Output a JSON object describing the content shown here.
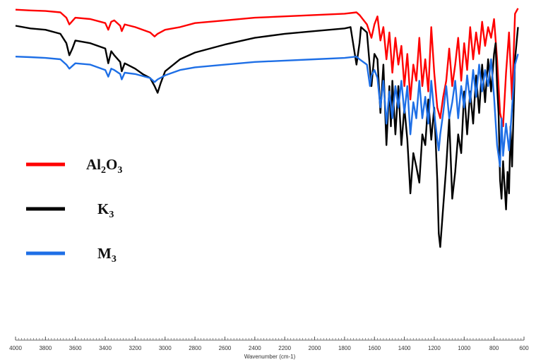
{
  "chart_data": {
    "type": "line",
    "title": "",
    "xlabel": "Wavenumber (cm-1)",
    "ylabel": "",
    "xlim": [
      4000,
      600
    ],
    "ylim": [
      0,
      100
    ],
    "x_reversed": true,
    "grid": false,
    "legend_position": "left",
    "x_ticks": [
      4000,
      3800,
      3600,
      3400,
      3200,
      3000,
      2800,
      2600,
      2400,
      2200,
      2000,
      1800,
      1600,
      1400,
      1200,
      1000,
      800,
      600
    ],
    "x_tick_labels": [
      "4000",
      "3800",
      "3600",
      "3400",
      "3200",
      "3000",
      "2800",
      "2600",
      "2400",
      "2200",
      "2000",
      "1800",
      "1600",
      "1400",
      "1200",
      "1000",
      "800",
      "600"
    ],
    "series": [
      {
        "name": "Al2O3",
        "legend_parts": [
          {
            "t": "Al",
            "sub": false
          },
          {
            "t": "2",
            "sub": true
          },
          {
            "t": "O",
            "sub": false
          },
          {
            "t": "3",
            "sub": true
          }
        ],
        "color": "#ff0000",
        "x": [
          4000,
          3900,
          3800,
          3700,
          3660,
          3640,
          3600,
          3500,
          3400,
          3380,
          3360,
          3340,
          3300,
          3290,
          3270,
          3200,
          3100,
          3070,
          3050,
          3000,
          2900,
          2800,
          2600,
          2400,
          2200,
          2000,
          1800,
          1720,
          1700,
          1650,
          1620,
          1600,
          1580,
          1560,
          1540,
          1520,
          1500,
          1480,
          1460,
          1440,
          1420,
          1400,
          1380,
          1360,
          1340,
          1320,
          1300,
          1280,
          1260,
          1240,
          1220,
          1200,
          1180,
          1160,
          1140,
          1120,
          1100,
          1080,
          1060,
          1040,
          1020,
          1000,
          980,
          960,
          940,
          920,
          900,
          880,
          860,
          840,
          820,
          800,
          780,
          760,
          740,
          720,
          700,
          680,
          660,
          640
        ],
        "y": [
          98.5,
          98.2,
          98.0,
          97.5,
          95.5,
          93.0,
          95.5,
          95.0,
          93.5,
          91.0,
          94.0,
          94.5,
          92.5,
          90.5,
          93.0,
          92.0,
          90.0,
          88.5,
          89.5,
          91.0,
          92.0,
          93.5,
          94.5,
          95.5,
          96.0,
          96.5,
          97.0,
          97.5,
          96.5,
          93.0,
          88.0,
          93.0,
          96.0,
          87.0,
          92.0,
          80.0,
          90.0,
          75.0,
          88.0,
          78.0,
          85.0,
          70.0,
          82.0,
          65.0,
          78.0,
          72.0,
          88.0,
          70.0,
          80.0,
          68.0,
          92.0,
          75.0,
          62.0,
          58.0,
          66.0,
          72.0,
          84.0,
          70.0,
          78.0,
          88.0,
          72.0,
          86.0,
          76.0,
          92.0,
          80.0,
          90.0,
          82.0,
          94.0,
          85.0,
          92.0,
          88.0,
          95.0,
          80.0,
          60.0,
          55.0,
          75.0,
          90.0,
          65.0,
          97.0,
          99.0
        ]
      },
      {
        "name": "K3",
        "legend_parts": [
          {
            "t": "K",
            "sub": false
          },
          {
            "t": "3",
            "sub": true
          }
        ],
        "color": "#000000",
        "x": [
          4000,
          3900,
          3800,
          3700,
          3660,
          3640,
          3620,
          3600,
          3500,
          3400,
          3380,
          3360,
          3340,
          3300,
          3290,
          3270,
          3200,
          3150,
          3100,
          3070,
          3050,
          3030,
          3000,
          2900,
          2800,
          2600,
          2400,
          2200,
          2000,
          1800,
          1760,
          1740,
          1720,
          1700,
          1690,
          1650,
          1620,
          1600,
          1580,
          1560,
          1540,
          1520,
          1500,
          1490,
          1480,
          1460,
          1440,
          1420,
          1400,
          1380,
          1360,
          1340,
          1320,
          1300,
          1280,
          1260,
          1240,
          1220,
          1200,
          1180,
          1170,
          1160,
          1140,
          1120,
          1100,
          1080,
          1060,
          1040,
          1020,
          1000,
          980,
          960,
          940,
          920,
          900,
          880,
          860,
          840,
          820,
          800,
          790,
          780,
          770,
          760,
          750,
          740,
          720,
          710,
          700,
          690,
          680,
          660,
          640
        ],
        "y": [
          92.5,
          91.5,
          91.0,
          89.5,
          86.0,
          81.5,
          84.0,
          87.0,
          86.0,
          84.0,
          78.5,
          83.0,
          81.5,
          79.0,
          75.5,
          78.5,
          76.5,
          74.5,
          73.0,
          70.0,
          67.5,
          71.0,
          75.5,
          80.0,
          82.5,
          85.5,
          88.0,
          89.5,
          90.5,
          91.5,
          92.0,
          85.0,
          78.0,
          86.0,
          92.0,
          90.0,
          70.0,
          82.0,
          80.0,
          60.0,
          78.0,
          48.0,
          70.0,
          55.0,
          72.0,
          52.0,
          70.0,
          48.0,
          62.0,
          50.0,
          30.0,
          45.0,
          40.0,
          34.0,
          52.0,
          48.0,
          65.0,
          50.0,
          62.0,
          35.0,
          15.0,
          10.0,
          25.0,
          40.0,
          58.0,
          28.0,
          38.0,
          52.0,
          45.0,
          68.0,
          52.0,
          68.0,
          56.0,
          74.0,
          60.0,
          78.0,
          64.0,
          80.0,
          68.0,
          82.0,
          86.0,
          70.0,
          60.0,
          35.0,
          28.0,
          42.0,
          24.0,
          38.0,
          30.0,
          55.0,
          40.0,
          80.0,
          92.0
        ]
      },
      {
        "name": "M3",
        "legend_parts": [
          {
            "t": "M",
            "sub": false
          },
          {
            "t": "3",
            "sub": true
          }
        ],
        "color": "#1e6fe6",
        "x": [
          4000,
          3900,
          3800,
          3700,
          3660,
          3640,
          3600,
          3500,
          3400,
          3380,
          3360,
          3340,
          3300,
          3290,
          3270,
          3200,
          3100,
          3070,
          3050,
          3000,
          2900,
          2800,
          2600,
          2400,
          2200,
          2000,
          1800,
          1720,
          1700,
          1650,
          1630,
          1620,
          1600,
          1580,
          1560,
          1540,
          1520,
          1500,
          1480,
          1460,
          1440,
          1420,
          1400,
          1380,
          1360,
          1340,
          1320,
          1300,
          1280,
          1260,
          1240,
          1220,
          1200,
          1180,
          1170,
          1160,
          1140,
          1120,
          1100,
          1080,
          1060,
          1040,
          1020,
          1000,
          980,
          960,
          940,
          920,
          900,
          880,
          860,
          840,
          820,
          800,
          780,
          760,
          750,
          740,
          720,
          700,
          680,
          660,
          640
        ],
        "y": [
          81.0,
          80.8,
          80.5,
          80.0,
          78.0,
          76.5,
          78.5,
          78.0,
          76.0,
          73.5,
          76.5,
          76.0,
          74.5,
          72.5,
          75.0,
          74.5,
          73.0,
          71.5,
          72.5,
          74.0,
          76.0,
          77.0,
          78.0,
          79.0,
          79.5,
          80.0,
          80.5,
          81.0,
          80.0,
          78.0,
          70.0,
          74.0,
          76.0,
          73.0,
          62.0,
          72.0,
          56.0,
          68.0,
          58.0,
          70.0,
          62.0,
          72.0,
          60.0,
          70.0,
          52.0,
          64.0,
          58.0,
          72.0,
          58.0,
          66.0,
          56.0,
          72.0,
          60.0,
          50.0,
          46.0,
          52.0,
          60.0,
          70.0,
          58.0,
          64.0,
          72.0,
          58.0,
          70.0,
          62.0,
          74.0,
          64.0,
          76.0,
          66.0,
          78.0,
          68.0,
          76.0,
          70.0,
          80.0,
          66.0,
          48.0,
          40.0,
          58.0,
          44.0,
          56.0,
          46.0,
          62.0,
          78.0,
          82.0
        ]
      }
    ]
  }
}
